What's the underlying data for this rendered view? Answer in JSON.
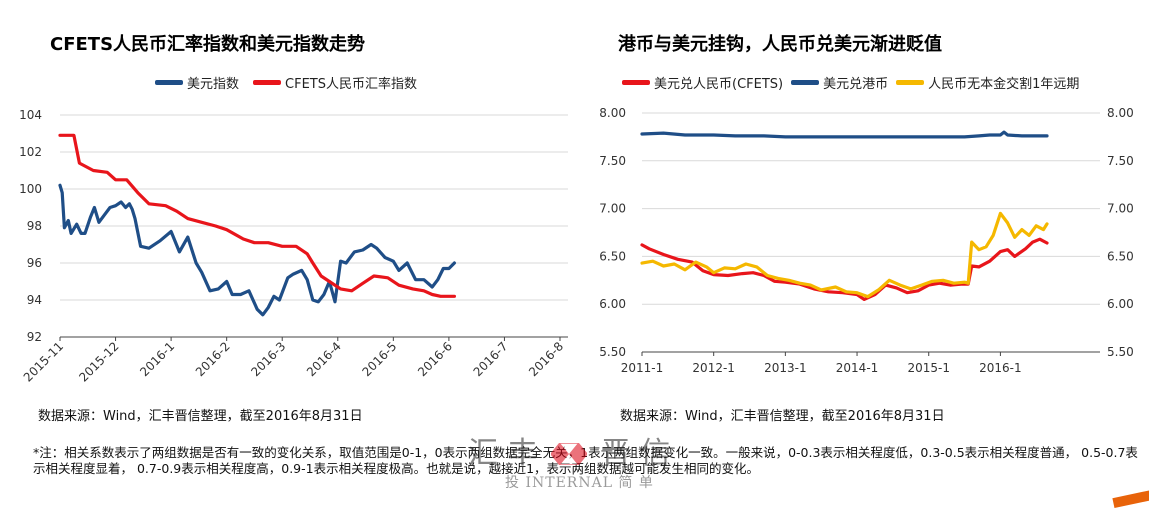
{
  "colors": {
    "red": "#e8151b",
    "navy": "#1f4e87",
    "yellow": "#f5b800",
    "grid": "#d9d9d9",
    "axis": "#444444"
  },
  "source_left": "数据来源：Wind，汇丰晋信整理，截至2016年8月31日",
  "source_right": "数据来源：Wind，汇丰晋信整理，截至2016年8月31日",
  "note": "*注：相关系数表示了两组数据是否有一致的变化关系，取值范围是0-1，0表示两组数据完全无关，1表示两组数据变化一致。一般来说，0-0.3表示相关程度低，0.3-0.5表示相关程度普通， 0.5-0.7表示相关程度显着， 0.7-0.9表示相关程度高，0.9-1表示相关程度极高。也就是说，越接近1，表示两组数据越可能发生相同的变化。",
  "watermark": {
    "brand": "汇 丰",
    "brand2": "晋 信",
    "sub": "投 INTERNAL 简 单"
  },
  "chart_data": [
    {
      "type": "line",
      "title": "CFETS人民币汇率指数和美元指数走势",
      "x": [
        "2015-11",
        "2015-12",
        "2016-1",
        "2016-2",
        "2016-3",
        "2016-4",
        "2016-5",
        "2016-6",
        "2016-7",
        "2016-8"
      ],
      "ylim": [
        92,
        104
      ],
      "yticks": [
        "92",
        "94",
        "96",
        "98",
        "100",
        "102",
        "104"
      ],
      "grid": true,
      "legend_position": "top",
      "series": [
        {
          "name": "美元指数",
          "color": "#1f4e87",
          "values": [
            [
              0,
              100.2
            ],
            [
              0.04,
              99.8
            ],
            [
              0.08,
              97.9
            ],
            [
              0.15,
              98.3
            ],
            [
              0.2,
              97.6
            ],
            [
              0.3,
              98.1
            ],
            [
              0.38,
              97.6
            ],
            [
              0.45,
              97.6
            ],
            [
              0.55,
              98.5
            ],
            [
              0.62,
              99.0
            ],
            [
              0.7,
              98.2
            ],
            [
              0.8,
              98.6
            ],
            [
              0.9,
              99.0
            ],
            [
              1.0,
              99.1
            ],
            [
              1.1,
              99.3
            ],
            [
              1.18,
              99.0
            ],
            [
              1.25,
              99.2
            ],
            [
              1.3,
              98.9
            ],
            [
              1.35,
              98.4
            ],
            [
              1.45,
              96.9
            ],
            [
              1.6,
              96.8
            ],
            [
              1.8,
              97.2
            ],
            [
              2.0,
              97.7
            ],
            [
              2.15,
              96.6
            ],
            [
              2.3,
              97.4
            ],
            [
              2.45,
              96.0
            ],
            [
              2.55,
              95.5
            ],
            [
              2.7,
              94.5
            ],
            [
              2.85,
              94.6
            ],
            [
              3.0,
              95.0
            ],
            [
              3.1,
              94.3
            ],
            [
              3.25,
              94.3
            ],
            [
              3.4,
              94.5
            ],
            [
              3.55,
              93.5
            ],
            [
              3.65,
              93.2
            ],
            [
              3.75,
              93.6
            ],
            [
              3.85,
              94.2
            ],
            [
              3.95,
              94.0
            ],
            [
              4.1,
              95.2
            ],
            [
              4.2,
              95.4
            ],
            [
              4.35,
              95.6
            ],
            [
              4.45,
              95.1
            ],
            [
              4.55,
              94.0
            ],
            [
              4.65,
              93.9
            ],
            [
              4.75,
              94.3
            ],
            [
              4.85,
              95.0
            ],
            [
              4.95,
              93.9
            ],
            [
              5.05,
              96.1
            ],
            [
              5.15,
              96.0
            ],
            [
              5.3,
              96.6
            ],
            [
              5.45,
              96.7
            ],
            [
              5.6,
              97.0
            ],
            [
              5.7,
              96.8
            ],
            [
              5.85,
              96.3
            ],
            [
              6.0,
              96.1
            ],
            [
              6.1,
              95.6
            ],
            [
              6.25,
              96.0
            ],
            [
              6.4,
              95.1
            ],
            [
              6.55,
              95.1
            ],
            [
              6.7,
              94.7
            ],
            [
              6.8,
              95.1
            ],
            [
              6.9,
              95.7
            ],
            [
              7.0,
              95.7
            ],
            [
              7.1,
              96.0
            ]
          ]
        },
        {
          "name": "CFETS人民币汇率指数",
          "color": "#e8151b",
          "values": [
            [
              0,
              102.9
            ],
            [
              0.25,
              102.9
            ],
            [
              0.35,
              101.4
            ],
            [
              0.6,
              101.0
            ],
            [
              0.85,
              100.9
            ],
            [
              1.0,
              100.5
            ],
            [
              1.2,
              100.5
            ],
            [
              1.4,
              99.8
            ],
            [
              1.6,
              99.2
            ],
            [
              1.9,
              99.1
            ],
            [
              2.1,
              98.8
            ],
            [
              2.3,
              98.4
            ],
            [
              2.55,
              98.2
            ],
            [
              2.8,
              98.0
            ],
            [
              3.0,
              97.8
            ],
            [
              3.3,
              97.3
            ],
            [
              3.5,
              97.1
            ],
            [
              3.75,
              97.1
            ],
            [
              4.0,
              96.9
            ],
            [
              4.25,
              96.9
            ],
            [
              4.45,
              96.5
            ],
            [
              4.55,
              96.0
            ],
            [
              4.7,
              95.3
            ],
            [
              4.85,
              95.0
            ],
            [
              5.05,
              94.6
            ],
            [
              5.25,
              94.5
            ],
            [
              5.45,
              94.9
            ],
            [
              5.65,
              95.3
            ],
            [
              5.9,
              95.2
            ],
            [
              6.1,
              94.8
            ],
            [
              6.35,
              94.6
            ],
            [
              6.55,
              94.5
            ],
            [
              6.7,
              94.3
            ],
            [
              6.85,
              94.2
            ],
            [
              7.0,
              94.2
            ],
            [
              7.1,
              94.2
            ]
          ]
        }
      ]
    },
    {
      "type": "line",
      "title": "港币与美元挂钩，人民币兑美元渐进贬值",
      "x": [
        "2011-1",
        "2012-1",
        "2013-1",
        "2014-1",
        "2015-1",
        "2016-1"
      ],
      "ylim": [
        5.5,
        8.0
      ],
      "yticks": [
        "5.50",
        "6.00",
        "6.50",
        "7.00",
        "7.50",
        "8.00"
      ],
      "grid": true,
      "legend_position": "top",
      "series": [
        {
          "name": "美元兑人民币(CFETS)",
          "color": "#e8151b",
          "values": [
            [
              0,
              6.62
            ],
            [
              0.1,
              6.58
            ],
            [
              0.3,
              6.52
            ],
            [
              0.5,
              6.47
            ],
            [
              0.7,
              6.44
            ],
            [
              0.85,
              6.35
            ],
            [
              1.0,
              6.31
            ],
            [
              1.2,
              6.3
            ],
            [
              1.4,
              6.32
            ],
            [
              1.55,
              6.33
            ],
            [
              1.7,
              6.3
            ],
            [
              1.85,
              6.24
            ],
            [
              2.0,
              6.23
            ],
            [
              2.2,
              6.21
            ],
            [
              2.4,
              6.16
            ],
            [
              2.6,
              6.13
            ],
            [
              2.8,
              6.12
            ],
            [
              3.0,
              6.1
            ],
            [
              3.1,
              6.05
            ],
            [
              3.25,
              6.1
            ],
            [
              3.4,
              6.2
            ],
            [
              3.55,
              6.17
            ],
            [
              3.7,
              6.12
            ],
            [
              3.85,
              6.14
            ],
            [
              4.0,
              6.2
            ],
            [
              4.15,
              6.22
            ],
            [
              4.3,
              6.2
            ],
            [
              4.45,
              6.21
            ],
            [
              4.55,
              6.21
            ],
            [
              4.6,
              6.4
            ],
            [
              4.7,
              6.39
            ],
            [
              4.85,
              6.45
            ],
            [
              5.0,
              6.55
            ],
            [
              5.1,
              6.57
            ],
            [
              5.2,
              6.5
            ],
            [
              5.35,
              6.58
            ],
            [
              5.45,
              6.65
            ],
            [
              5.55,
              6.68
            ],
            [
              5.65,
              6.64
            ]
          ]
        },
        {
          "name": "美元兑港币",
          "color": "#1f4e87",
          "values": [
            [
              0,
              7.78
            ],
            [
              0.3,
              7.79
            ],
            [
              0.6,
              7.77
            ],
            [
              1.0,
              7.77
            ],
            [
              1.3,
              7.76
            ],
            [
              1.7,
              7.76
            ],
            [
              2.0,
              7.75
            ],
            [
              2.5,
              7.75
            ],
            [
              3.0,
              7.75
            ],
            [
              3.5,
              7.75
            ],
            [
              4.0,
              7.75
            ],
            [
              4.5,
              7.75
            ],
            [
              4.7,
              7.76
            ],
            [
              4.85,
              7.77
            ],
            [
              5.0,
              7.77
            ],
            [
              5.05,
              7.8
            ],
            [
              5.1,
              7.77
            ],
            [
              5.3,
              7.76
            ],
            [
              5.5,
              7.76
            ],
            [
              5.65,
              7.76
            ]
          ]
        },
        {
          "name": "人民币无本金交割1年远期",
          "color": "#f5b800",
          "values": [
            [
              0,
              6.43
            ],
            [
              0.15,
              6.45
            ],
            [
              0.3,
              6.4
            ],
            [
              0.45,
              6.42
            ],
            [
              0.6,
              6.36
            ],
            [
              0.75,
              6.44
            ],
            [
              0.9,
              6.39
            ],
            [
              1.0,
              6.33
            ],
            [
              1.15,
              6.38
            ],
            [
              1.3,
              6.37
            ],
            [
              1.45,
              6.42
            ],
            [
              1.6,
              6.39
            ],
            [
              1.75,
              6.3
            ],
            [
              1.9,
              6.27
            ],
            [
              2.05,
              6.25
            ],
            [
              2.2,
              6.22
            ],
            [
              2.35,
              6.2
            ],
            [
              2.5,
              6.15
            ],
            [
              2.7,
              6.18
            ],
            [
              2.85,
              6.13
            ],
            [
              3.0,
              6.12
            ],
            [
              3.15,
              6.08
            ],
            [
              3.3,
              6.15
            ],
            [
              3.45,
              6.25
            ],
            [
              3.6,
              6.2
            ],
            [
              3.75,
              6.16
            ],
            [
              3.9,
              6.2
            ],
            [
              4.05,
              6.24
            ],
            [
              4.2,
              6.25
            ],
            [
              4.35,
              6.22
            ],
            [
              4.5,
              6.23
            ],
            [
              4.55,
              6.22
            ],
            [
              4.6,
              6.65
            ],
            [
              4.7,
              6.57
            ],
            [
              4.8,
              6.6
            ],
            [
              4.9,
              6.72
            ],
            [
              5.0,
              6.95
            ],
            [
              5.1,
              6.85
            ],
            [
              5.2,
              6.7
            ],
            [
              5.3,
              6.78
            ],
            [
              5.4,
              6.72
            ],
            [
              5.5,
              6.82
            ],
            [
              5.6,
              6.78
            ],
            [
              5.65,
              6.84
            ]
          ]
        }
      ]
    }
  ]
}
